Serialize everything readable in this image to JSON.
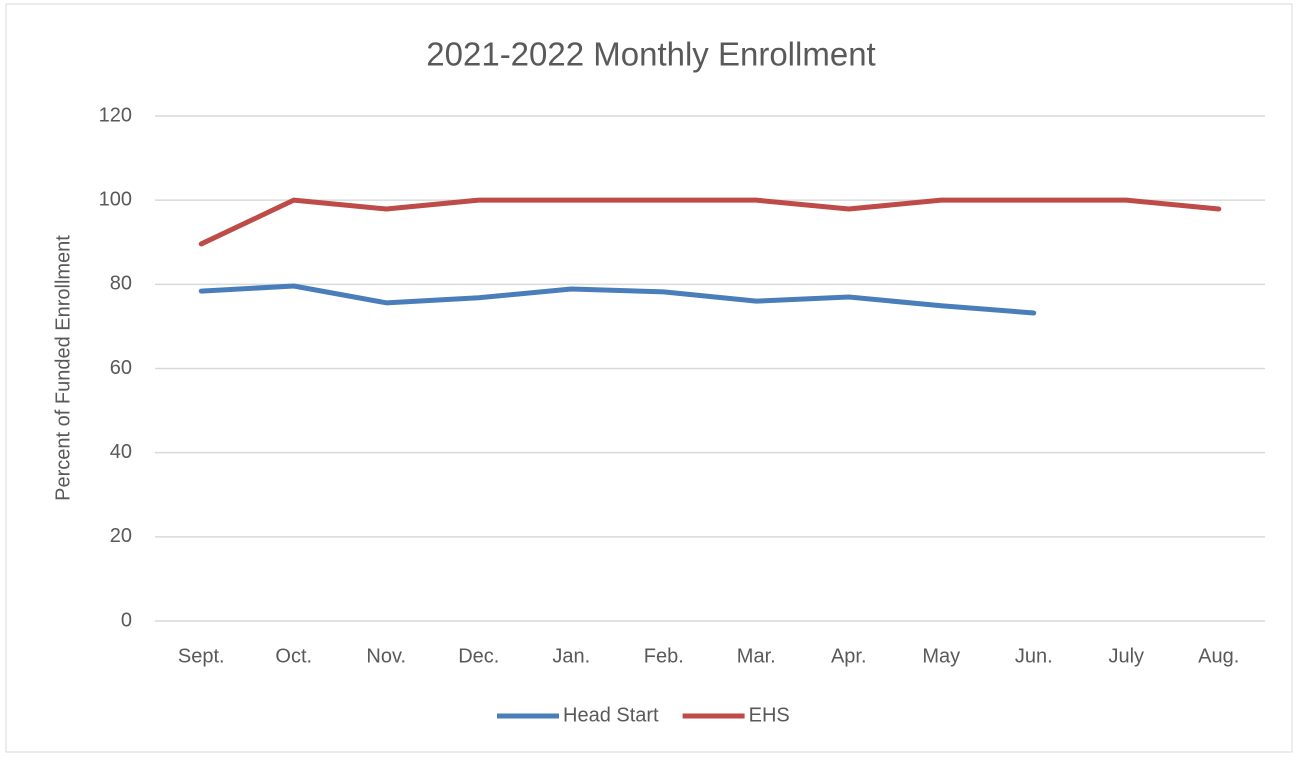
{
  "chart_data": {
    "type": "line",
    "title": "2021-2022 Monthly Enrollment",
    "y_label": "Percent of Funded Enrollment",
    "categories": [
      "Sept.",
      "Oct.",
      "Nov.",
      "Dec.",
      "Jan.",
      "Feb.",
      "Mar.",
      "Apr.",
      "May",
      "Jun.",
      "July",
      "Aug."
    ],
    "series": [
      {
        "name": "Head Start",
        "color": "#4a7ebb",
        "values": [
          78.4,
          79.6,
          75.6,
          76.8,
          78.9,
          78.2,
          76,
          77,
          74.9,
          73.2,
          null,
          null
        ]
      },
      {
        "name": "EHS",
        "color": "#be4b48",
        "values": [
          89.6,
          100,
          97.9,
          100,
          100,
          100,
          100,
          97.9,
          100,
          100,
          100,
          97.9
        ]
      }
    ],
    "ylim": [
      0,
      120
    ],
    "yticks": [
      0,
      20,
      40,
      60,
      80,
      100,
      120
    ],
    "grid": true,
    "legend": "bottom"
  }
}
